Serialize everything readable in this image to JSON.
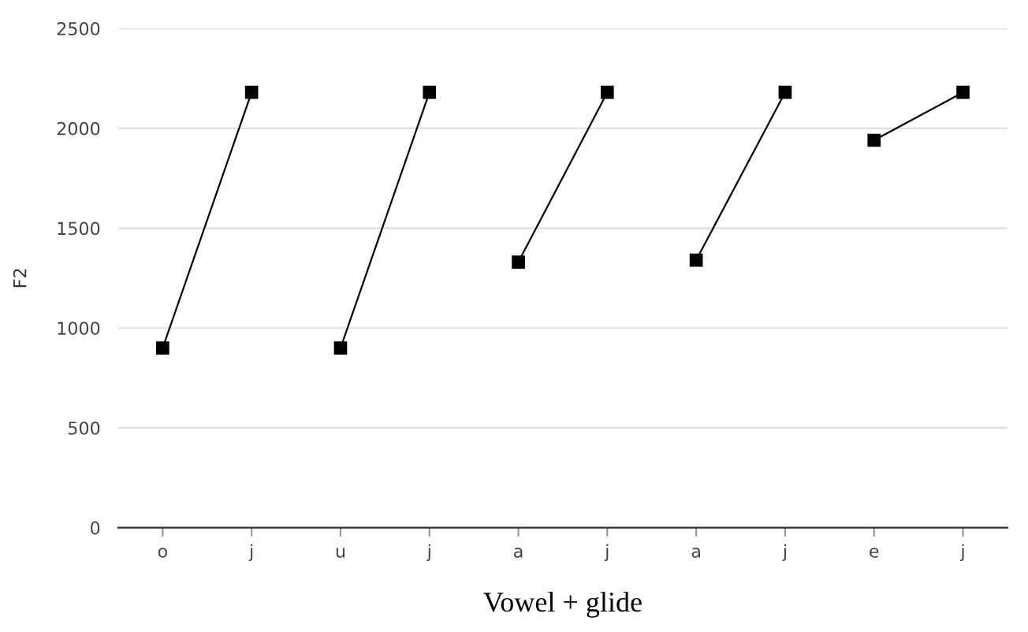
{
  "chart_data": {
    "type": "line",
    "xlabel": "Vowel + glide",
    "ylabel": "F2",
    "categories": [
      "o",
      "j",
      "u",
      "j",
      "a",
      "j",
      "a",
      "j",
      "e",
      "j"
    ],
    "series": [
      {
        "color": "#000000",
        "values": [
          900,
          2180,
          null,
          null,
          null,
          null,
          null,
          null,
          null,
          null
        ]
      },
      {
        "color": "#000000",
        "values": [
          null,
          null,
          900,
          2180,
          null,
          null,
          null,
          null,
          null,
          null
        ]
      },
      {
        "color": "#000000",
        "values": [
          null,
          null,
          null,
          null,
          1330,
          2180,
          null,
          null,
          null,
          null
        ]
      },
      {
        "color": "#000000",
        "values": [
          null,
          null,
          null,
          null,
          null,
          null,
          1340,
          2180,
          null,
          null
        ]
      },
      {
        "color": "#000000",
        "values": [
          null,
          null,
          null,
          null,
          null,
          null,
          null,
          null,
          1940,
          2180
        ]
      }
    ],
    "ylim": [
      0,
      2500
    ],
    "yticks": [
      0,
      500,
      1000,
      1500,
      2000,
      2500
    ],
    "grid": "y",
    "marker": "square",
    "line_style": "solid"
  }
}
